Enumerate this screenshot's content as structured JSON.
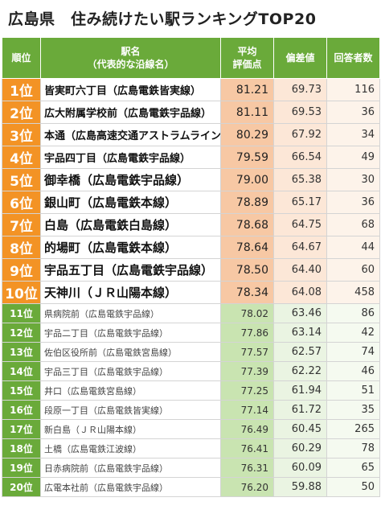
{
  "title": "広島県　住み続けたい駅ランキングTOP20",
  "headers": {
    "rank": "順位",
    "name_line1": "駅名",
    "name_line2": "（代表的な沿線名）",
    "avg_line1": "平均",
    "avg_line2": "評価点",
    "deviation": "偏差値",
    "respondents": "回答者数"
  },
  "rows": [
    {
      "rank": "1位",
      "name": "皆実町六丁目（広島電鉄皆実線）",
      "avg": "81.21",
      "dev": "69.73",
      "cnt": "116"
    },
    {
      "rank": "2位",
      "name": "広大附属学校前（広島電鉄宇品線）",
      "avg": "81.11",
      "dev": "69.53",
      "cnt": "36"
    },
    {
      "rank": "3位",
      "name": "本通（広島高速交通アストラムライン）",
      "avg": "80.29",
      "dev": "67.92",
      "cnt": "34"
    },
    {
      "rank": "4位",
      "name": "宇品四丁目（広島電鉄宇品線）",
      "avg": "79.59",
      "dev": "66.54",
      "cnt": "49"
    },
    {
      "rank": "5位",
      "name": "御幸橋（広島電鉄宇品線）",
      "avg": "79.00",
      "dev": "65.38",
      "cnt": "30"
    },
    {
      "rank": "6位",
      "name": "銀山町（広島電鉄本線）",
      "avg": "78.89",
      "dev": "65.17",
      "cnt": "36"
    },
    {
      "rank": "7位",
      "name": "白島（広島電鉄白島線）",
      "avg": "78.68",
      "dev": "64.75",
      "cnt": "68"
    },
    {
      "rank": "8位",
      "name": "的場町（広島電鉄本線）",
      "avg": "78.64",
      "dev": "64.67",
      "cnt": "44"
    },
    {
      "rank": "9位",
      "name": "宇品五丁目（広島電鉄宇品線）",
      "avg": "78.50",
      "dev": "64.40",
      "cnt": "60"
    },
    {
      "rank": "10位",
      "name": "天神川（ＪＲ山陽本線）",
      "avg": "78.34",
      "dev": "64.08",
      "cnt": "458"
    },
    {
      "rank": "11位",
      "name": "県病院前（広島電鉄宇品線）",
      "avg": "78.02",
      "dev": "63.46",
      "cnt": "86"
    },
    {
      "rank": "12位",
      "name": "宇品二丁目（広島電鉄宇品線）",
      "avg": "77.86",
      "dev": "63.14",
      "cnt": "42"
    },
    {
      "rank": "13位",
      "name": "佐伯区役所前（広島電鉄宮島線）",
      "avg": "77.57",
      "dev": "62.57",
      "cnt": "74"
    },
    {
      "rank": "14位",
      "name": "宇品三丁目（広島電鉄宇品線）",
      "avg": "77.39",
      "dev": "62.22",
      "cnt": "46"
    },
    {
      "rank": "15位",
      "name": "井口（広島電鉄宮島線）",
      "avg": "77.25",
      "dev": "61.94",
      "cnt": "51"
    },
    {
      "rank": "16位",
      "name": "段原一丁目（広島電鉄皆実線）",
      "avg": "77.14",
      "dev": "61.72",
      "cnt": "35"
    },
    {
      "rank": "17位",
      "name": "新白島（ＪＲ山陽本線）",
      "avg": "76.49",
      "dev": "60.45",
      "cnt": "265"
    },
    {
      "rank": "18位",
      "name": "土橋（広島電鉄江波線）",
      "avg": "76.41",
      "dev": "60.29",
      "cnt": "78"
    },
    {
      "rank": "19位",
      "name": "日赤病院前（広島電鉄宇品線）",
      "avg": "76.31",
      "dev": "60.09",
      "cnt": "65"
    },
    {
      "rank": "20位",
      "name": "広電本社前（広島電鉄宇品線）",
      "avg": "76.20",
      "dev": "59.88",
      "cnt": "50"
    }
  ],
  "colors": {
    "header_green": "#6aaa3a",
    "top_rank_orange": "#f39325",
    "top_avg": "#f7c8a4",
    "rest_avg": "#c9e4b1"
  }
}
